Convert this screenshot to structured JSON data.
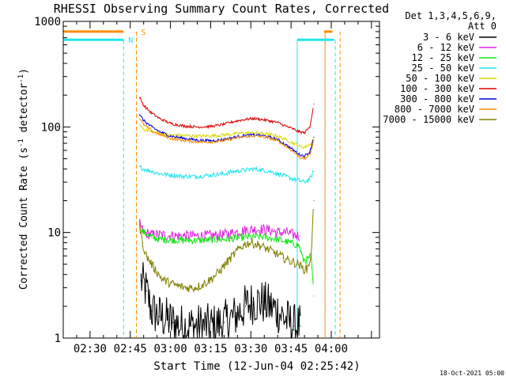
{
  "chart_data": {
    "type": "line",
    "title": "RHESSI Observing Summary Count Rates, Corrected",
    "xlabel": "Start Time (12-Jun-04 02:25:42)",
    "ylabel_main": "Corrected Count Rate (s",
    "ylabel_sup1": "-1",
    "ylabel_mid": " detector",
    "ylabel_sup2": "-1",
    "ylabel_end": ")",
    "yscale": "log",
    "ylim": [
      1,
      1000
    ],
    "xlim_min": [
      0,
      118
    ],
    "x_ticks": [
      {
        "min": 10,
        "label": "02:30"
      },
      {
        "min": 25,
        "label": "02:45"
      },
      {
        "min": 40,
        "label": "03:00"
      },
      {
        "min": 55,
        "label": "03:15"
      },
      {
        "min": 70,
        "label": "03:30"
      },
      {
        "min": 85,
        "label": "03:45"
      },
      {
        "min": 100,
        "label": "04:00"
      }
    ],
    "y_ticks": [
      {
        "value": 1,
        "label": "1"
      },
      {
        "value": 10,
        "label": "10"
      },
      {
        "value": 100,
        "label": "100"
      },
      {
        "value": 1000,
        "label": "1000"
      }
    ],
    "legend_header": [
      "Det 1,3,4,5,6,9,",
      "Att 0"
    ],
    "series": [
      {
        "name": "3 - 6 keV",
        "color": "#000000",
        "x": [
          29,
          31,
          33,
          36,
          39,
          41,
          44,
          48,
          52,
          56,
          60,
          64,
          68,
          71,
          74,
          77,
          80,
          83,
          86,
          88.5
        ],
        "y": [
          3.5,
          2.8,
          1.8,
          1.6,
          1.5,
          1.4,
          1.3,
          1.3,
          1.3,
          1.3,
          1.4,
          1.6,
          2.0,
          2.2,
          2.2,
          2.0,
          1.8,
          1.5,
          1.3,
          1.3
        ]
      },
      {
        "name": "6 - 12 keV",
        "color": "#e01ee0",
        "x": [
          28.5,
          30,
          33,
          36,
          40,
          45,
          50,
          55,
          60,
          64,
          68,
          71,
          74,
          77,
          80,
          83,
          86,
          88.3
        ],
        "y": [
          12,
          10,
          9.5,
          9.5,
          9.3,
          9.3,
          9.3,
          9.3,
          9.5,
          10,
          10.5,
          10.7,
          10.7,
          10.5,
          10,
          10,
          9.5,
          9.3
        ]
      },
      {
        "name": "12 - 25 keV",
        "color": "#11e811",
        "x": [
          28.5,
          30,
          33,
          36,
          40,
          45,
          50,
          55,
          60,
          64,
          68,
          71,
          74,
          77,
          80,
          83,
          86,
          88,
          89.5,
          91,
          92.5,
          93.5
        ],
        "y": [
          11,
          10,
          9,
          8.6,
          8.5,
          8.4,
          8.4,
          8.5,
          8.6,
          8.8,
          9,
          9.1,
          9.1,
          8.9,
          8.6,
          8.2,
          7.8,
          7.5,
          5.5,
          5.5,
          6,
          2.5
        ]
      },
      {
        "name": "25 - 50 keV",
        "color": "#22e6ee",
        "x": [
          28.5,
          30,
          33,
          36,
          40,
          45,
          50,
          55,
          60,
          64,
          68,
          71,
          74,
          77,
          80,
          83,
          86,
          88,
          90,
          92,
          93.5
        ],
        "y": [
          42,
          40,
          38,
          36,
          35,
          34,
          34,
          35,
          36,
          38,
          39,
          40,
          39,
          38,
          36,
          34,
          32,
          31,
          30,
          32,
          38
        ]
      },
      {
        "name": "50 - 100 keV",
        "color": "#d9d900",
        "x": [
          28.5,
          30,
          33,
          36,
          40,
          45,
          50,
          55,
          60,
          64,
          68,
          71,
          74,
          77,
          80,
          83,
          86,
          88,
          90,
          92,
          93.5
        ],
        "y": [
          105,
          95,
          90,
          86,
          84,
          83,
          82,
          82,
          84,
          86,
          88,
          88,
          87,
          85,
          82,
          76,
          70,
          66,
          64,
          68,
          78
        ]
      },
      {
        "name": "100 - 300 keV",
        "color": "#dd0000",
        "x": [
          28.5,
          30,
          33,
          36,
          40,
          45,
          50,
          55,
          60,
          64,
          68,
          71,
          74,
          77,
          80,
          83,
          86,
          88,
          90,
          92,
          93.5
        ],
        "y": [
          190,
          160,
          135,
          120,
          108,
          102,
          100,
          101,
          106,
          113,
          118,
          120,
          118,
          114,
          110,
          102,
          95,
          90,
          88,
          100,
          165
        ]
      },
      {
        "name": "300 - 800 keV",
        "color": "#0000dd",
        "x": [
          28.5,
          30,
          33,
          36,
          40,
          45,
          50,
          55,
          60,
          64,
          68,
          71,
          74,
          77,
          80,
          83,
          86,
          88,
          90,
          92,
          93.5
        ],
        "y": [
          130,
          115,
          100,
          90,
          82,
          78,
          75,
          74,
          76,
          80,
          83,
          84,
          83,
          80,
          76,
          68,
          60,
          55,
          53,
          58,
          80
        ]
      },
      {
        "name": "800 - 7000 keV",
        "color": "#ff8c00",
        "x": [
          28.5,
          30,
          33,
          36,
          40,
          45,
          50,
          55,
          60,
          64,
          68,
          71,
          74,
          77,
          80,
          83,
          86,
          88,
          90,
          92,
          93.5
        ],
        "y": [
          120,
          105,
          92,
          85,
          78,
          74,
          72,
          72,
          74,
          78,
          81,
          82,
          81,
          78,
          74,
          66,
          58,
          52,
          50,
          54,
          75
        ]
      },
      {
        "name": "7000 - 15000 keV",
        "color": "#808000",
        "x": [
          28.5,
          29.5,
          31,
          33,
          35,
          37,
          40,
          43,
          46,
          49,
          52,
          55,
          58,
          61,
          64,
          66,
          68,
          70,
          73,
          76,
          79,
          82,
          85,
          88,
          89.5,
          91,
          92.5,
          93.5
        ],
        "y": [
          12,
          8,
          6,
          5,
          4.2,
          3.6,
          3.3,
          3.1,
          3.0,
          3.0,
          3.2,
          3.6,
          4.2,
          5.2,
          6.3,
          7.2,
          7.8,
          8.0,
          7.6,
          7.0,
          6.4,
          5.8,
          5.3,
          5.0,
          4.5,
          4.5,
          6,
          20
        ]
      }
    ],
    "flag_lines": [
      {
        "label": "S",
        "color": "#ff8c00",
        "value": 800,
        "segments": [
          [
            0,
            22.5
          ],
          [
            97,
            100.5
          ]
        ],
        "vlines_dashed": [
          27.3,
          103.3
        ],
        "vlines_solid": [
          97.7
        ]
      },
      {
        "label": "N",
        "color": "#22e6ee",
        "value": 670,
        "segments": [
          [
            0,
            22.5
          ],
          [
            87,
            101
          ]
        ],
        "vlines_dashed": [
          22.5,
          101.5
        ],
        "vlines_solid": [
          87.3
        ]
      }
    ]
  },
  "footer_date": "18-Oct-2021 05:00"
}
